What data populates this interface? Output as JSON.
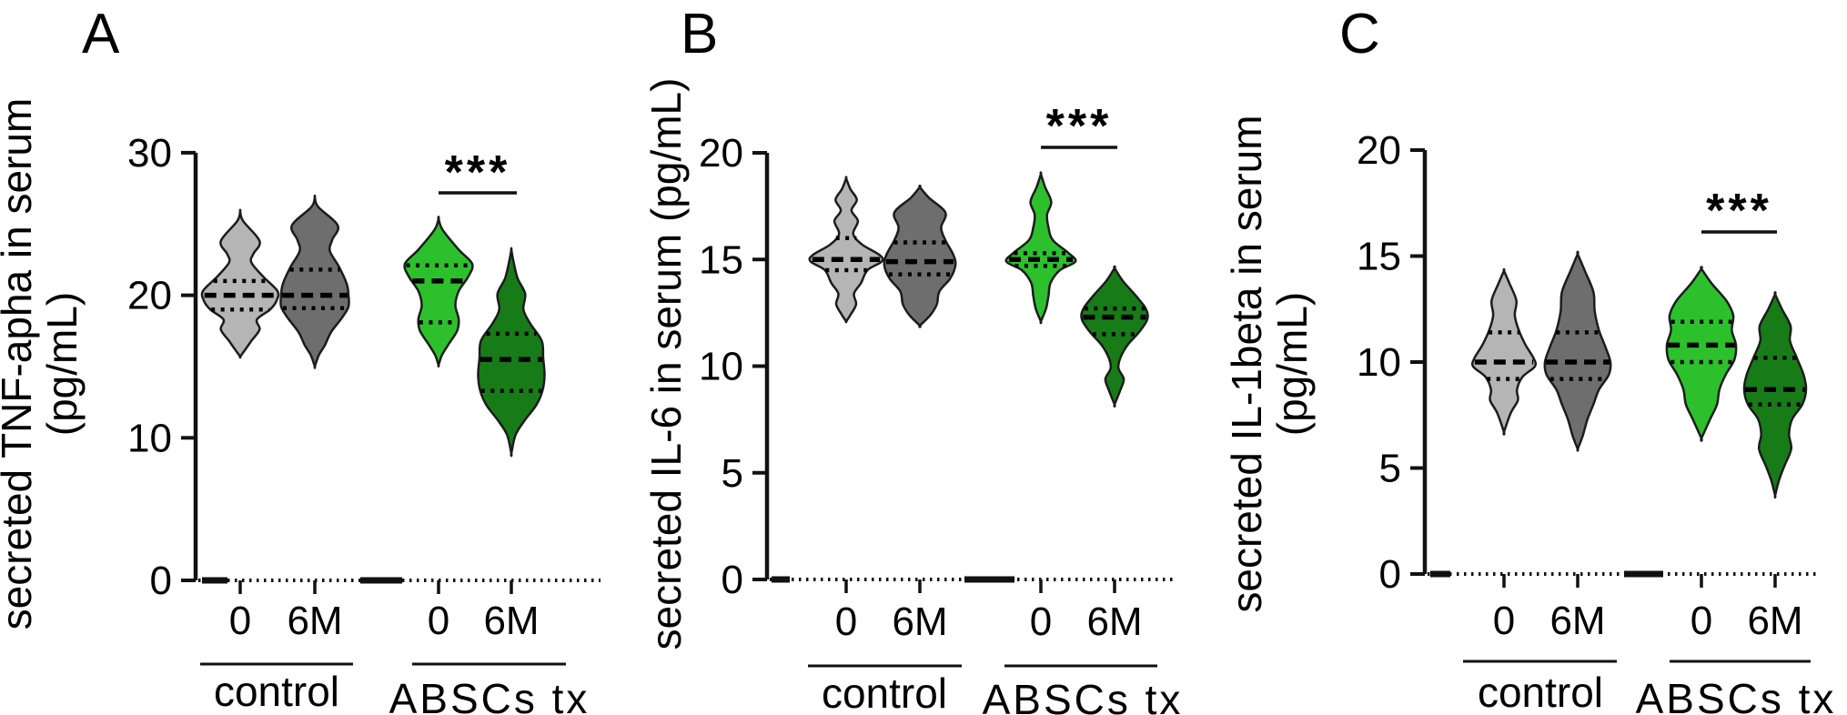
{
  "figure_title": "",
  "chart_data": [
    {
      "type": "violin",
      "panel_letter": "A",
      "ylabel": "secreted TNF-apha in serum (pg/mL)",
      "ylabel_lines": [
        "secreted TNF-apha in serum",
        "(pg/mL)"
      ],
      "ylim": [
        0,
        30
      ],
      "yticks": [
        0,
        10,
        20,
        30
      ],
      "x_tick_labels": [
        "0",
        "6M",
        "0",
        "6M"
      ],
      "group_labels": [
        "control",
        "ABSCs tx"
      ],
      "significance": {
        "label": "***",
        "comparison": "ABSCs tx 0 vs ABSCs tx 6M"
      },
      "violins": [
        {
          "group": "control",
          "timepoint": "0",
          "fill": "#b5b5b5",
          "median": 20.0,
          "q1": 19.0,
          "q3": 21.0,
          "min": 15.7,
          "max": 25.9,
          "profile": [
            [
              25.9,
              0
            ],
            [
              25.2,
              0.08
            ],
            [
              23.8,
              0.52
            ],
            [
              22.9,
              0.35
            ],
            [
              22.3,
              0.3
            ],
            [
              21.3,
              0.62
            ],
            [
              20.3,
              1.0
            ],
            [
              19.6,
              0.97
            ],
            [
              19.0,
              0.8
            ],
            [
              18.3,
              0.45
            ],
            [
              17.6,
              0.52
            ],
            [
              16.8,
              0.3
            ],
            [
              16.2,
              0.14
            ],
            [
              15.7,
              0
            ]
          ]
        },
        {
          "group": "control",
          "timepoint": "6M",
          "fill": "#6e6e6e",
          "median": 20.0,
          "q1": 19.1,
          "q3": 21.8,
          "min": 15.0,
          "max": 26.9,
          "profile": [
            [
              26.9,
              0
            ],
            [
              26.2,
              0.1
            ],
            [
              24.9,
              0.68
            ],
            [
              23.9,
              0.52
            ],
            [
              23.1,
              0.45
            ],
            [
              22.0,
              0.72
            ],
            [
              20.8,
              0.95
            ],
            [
              20.0,
              1.0
            ],
            [
              19.2,
              1.0
            ],
            [
              18.4,
              0.8
            ],
            [
              17.4,
              0.48
            ],
            [
              16.5,
              0.3
            ],
            [
              15.8,
              0.12
            ],
            [
              15.0,
              0
            ]
          ]
        },
        {
          "group": "ABSCs tx",
          "timepoint": "0",
          "fill": "#2cc12c",
          "median": 21.0,
          "q1": 18.1,
          "q3": 22.1,
          "min": 15.1,
          "max": 25.4,
          "profile": [
            [
              25.4,
              0
            ],
            [
              24.6,
              0.12
            ],
            [
              23.2,
              0.6
            ],
            [
              22.2,
              1.0
            ],
            [
              21.3,
              0.88
            ],
            [
              20.3,
              0.6
            ],
            [
              19.3,
              0.5
            ],
            [
              18.3,
              0.6
            ],
            [
              17.5,
              0.55
            ],
            [
              16.5,
              0.28
            ],
            [
              15.8,
              0.1
            ],
            [
              15.1,
              0
            ]
          ]
        },
        {
          "group": "ABSCs tx",
          "timepoint": "6M",
          "fill": "#177c17",
          "median": 15.5,
          "q1": 13.3,
          "q3": 17.3,
          "min": 8.9,
          "max": 23.2,
          "profile": [
            [
              23.2,
              0
            ],
            [
              22.4,
              0.06
            ],
            [
              21.2,
              0.18
            ],
            [
              20.1,
              0.4
            ],
            [
              19.0,
              0.35
            ],
            [
              18.0,
              0.55
            ],
            [
              16.8,
              0.88
            ],
            [
              15.6,
              0.92
            ],
            [
              14.4,
              0.96
            ],
            [
              13.3,
              0.9
            ],
            [
              12.3,
              0.72
            ],
            [
              11.2,
              0.38
            ],
            [
              10.2,
              0.12
            ],
            [
              8.9,
              0
            ]
          ]
        }
      ]
    },
    {
      "type": "violin",
      "panel_letter": "B",
      "ylabel": "secreted IL-6 in serum (pg/mL)",
      "ylabel_lines": [
        "secreted IL-6 in serum (pg/mL)"
      ],
      "ylim": [
        0,
        20
      ],
      "yticks": [
        0,
        5,
        10,
        15,
        20
      ],
      "x_tick_labels": [
        "0",
        "6M",
        "0",
        "6M"
      ],
      "group_labels": [
        "control",
        "ABSCs tx"
      ],
      "significance": {
        "label": "***",
        "comparison": "ABSCs tx 0 vs ABSCs tx 6M"
      },
      "violins": [
        {
          "group": "control",
          "timepoint": "0",
          "fill": "#b5b5b5",
          "median": 15.0,
          "q1": 14.5,
          "q3": 16.0,
          "min": 12.1,
          "max": 18.8,
          "profile": [
            [
              18.8,
              0
            ],
            [
              18.3,
              0.12
            ],
            [
              17.8,
              0.3
            ],
            [
              17.3,
              0.15
            ],
            [
              16.8,
              0.33
            ],
            [
              16.2,
              0.2
            ],
            [
              15.7,
              0.45
            ],
            [
              15.2,
              0.95
            ],
            [
              14.9,
              1.0
            ],
            [
              14.5,
              0.6
            ],
            [
              13.9,
              0.42
            ],
            [
              13.4,
              0.22
            ],
            [
              12.9,
              0.28
            ],
            [
              12.4,
              0.12
            ],
            [
              12.1,
              0
            ]
          ]
        },
        {
          "group": "control",
          "timepoint": "6M",
          "fill": "#6e6e6e",
          "median": 14.9,
          "q1": 14.3,
          "q3": 15.8,
          "min": 11.9,
          "max": 18.4,
          "profile": [
            [
              18.4,
              0
            ],
            [
              17.9,
              0.25
            ],
            [
              17.2,
              0.72
            ],
            [
              16.5,
              0.6
            ],
            [
              15.9,
              0.72
            ],
            [
              15.2,
              0.95
            ],
            [
              14.7,
              1.0
            ],
            [
              14.1,
              0.85
            ],
            [
              13.5,
              0.55
            ],
            [
              12.9,
              0.48
            ],
            [
              12.4,
              0.3
            ],
            [
              11.9,
              0
            ]
          ]
        },
        {
          "group": "ABSCs tx",
          "timepoint": "0",
          "fill": "#2cc12c",
          "median": 15.0,
          "q1": 14.7,
          "q3": 15.3,
          "min": 12.1,
          "max": 19.0,
          "profile": [
            [
              19.0,
              0
            ],
            [
              18.4,
              0.12
            ],
            [
              17.7,
              0.3
            ],
            [
              17.1,
              0.18
            ],
            [
              16.5,
              0.22
            ],
            [
              15.9,
              0.35
            ],
            [
              15.3,
              0.8
            ],
            [
              14.9,
              1.0
            ],
            [
              14.5,
              0.55
            ],
            [
              13.9,
              0.28
            ],
            [
              13.3,
              0.22
            ],
            [
              12.7,
              0.15
            ],
            [
              12.1,
              0
            ]
          ]
        },
        {
          "group": "ABSCs tx",
          "timepoint": "6M",
          "fill": "#177c17",
          "median": 12.3,
          "q1": 11.5,
          "q3": 12.7,
          "min": 8.2,
          "max": 14.6,
          "profile": [
            [
              14.6,
              0
            ],
            [
              14.0,
              0.25
            ],
            [
              13.3,
              0.65
            ],
            [
              12.7,
              0.95
            ],
            [
              12.2,
              1.0
            ],
            [
              11.6,
              0.75
            ],
            [
              11.0,
              0.4
            ],
            [
              10.4,
              0.18
            ],
            [
              9.9,
              0.12
            ],
            [
              9.4,
              0.28
            ],
            [
              8.9,
              0.18
            ],
            [
              8.2,
              0
            ]
          ]
        }
      ]
    },
    {
      "type": "violin",
      "panel_letter": "C",
      "ylabel": "secreted IL-1beta in serum (pg/mL)",
      "ylabel_lines": [
        "secreted IL-1beta in serum",
        "(pg/mL)"
      ],
      "ylim": [
        0,
        20
      ],
      "yticks": [
        0,
        5,
        10,
        15,
        20
      ],
      "x_tick_labels": [
        "0",
        "6M",
        "0",
        "6M"
      ],
      "group_labels": [
        "control",
        "ABSCs tx"
      ],
      "significance": {
        "label": "***",
        "comparison": "ABSCs tx 0 vs ABSCs tx 6M"
      },
      "violins": [
        {
          "group": "control",
          "timepoint": "0",
          "fill": "#b5b5b5",
          "median": 10.0,
          "q1": 9.2,
          "q3": 11.4,
          "min": 6.7,
          "max": 14.3,
          "profile": [
            [
              14.3,
              0
            ],
            [
              13.7,
              0.18
            ],
            [
              12.9,
              0.4
            ],
            [
              12.2,
              0.35
            ],
            [
              11.5,
              0.48
            ],
            [
              10.8,
              0.7
            ],
            [
              10.2,
              0.95
            ],
            [
              9.8,
              1.0
            ],
            [
              9.3,
              0.6
            ],
            [
              8.7,
              0.42
            ],
            [
              8.2,
              0.45
            ],
            [
              7.6,
              0.22
            ],
            [
              6.7,
              0
            ]
          ]
        },
        {
          "group": "control",
          "timepoint": "6M",
          "fill": "#6e6e6e",
          "median": 10.0,
          "q1": 9.2,
          "q3": 11.4,
          "min": 5.9,
          "max": 15.1,
          "profile": [
            [
              15.1,
              0
            ],
            [
              14.3,
              0.22
            ],
            [
              13.3,
              0.48
            ],
            [
              12.4,
              0.52
            ],
            [
              11.5,
              0.65
            ],
            [
              10.7,
              0.85
            ],
            [
              10.0,
              1.0
            ],
            [
              9.4,
              0.95
            ],
            [
              8.7,
              0.65
            ],
            [
              8.0,
              0.48
            ],
            [
              7.3,
              0.3
            ],
            [
              6.5,
              0.15
            ],
            [
              5.9,
              0
            ]
          ]
        },
        {
          "group": "ABSCs tx",
          "timepoint": "0",
          "fill": "#2cc12c",
          "median": 10.8,
          "q1": 10.0,
          "q3": 11.9,
          "min": 6.4,
          "max": 14.4,
          "profile": [
            [
              14.4,
              0
            ],
            [
              13.7,
              0.3
            ],
            [
              12.9,
              0.72
            ],
            [
              12.2,
              0.92
            ],
            [
              11.5,
              0.88
            ],
            [
              10.8,
              1.0
            ],
            [
              10.1,
              0.95
            ],
            [
              9.4,
              0.7
            ],
            [
              8.7,
              0.52
            ],
            [
              8.0,
              0.45
            ],
            [
              7.3,
              0.25
            ],
            [
              6.4,
              0
            ]
          ]
        },
        {
          "group": "ABSCs tx",
          "timepoint": "6M",
          "fill": "#177c17",
          "median": 8.7,
          "q1": 8.0,
          "q3": 10.2,
          "min": 3.7,
          "max": 13.2,
          "profile": [
            [
              13.2,
              0
            ],
            [
              12.5,
              0.22
            ],
            [
              11.7,
              0.5
            ],
            [
              11.0,
              0.48
            ],
            [
              10.2,
              0.7
            ],
            [
              9.4,
              0.92
            ],
            [
              8.7,
              1.0
            ],
            [
              8.0,
              0.88
            ],
            [
              7.3,
              0.55
            ],
            [
              6.6,
              0.45
            ],
            [
              5.9,
              0.52
            ],
            [
              5.1,
              0.3
            ],
            [
              4.4,
              0.12
            ],
            [
              3.7,
              0
            ]
          ]
        }
      ]
    }
  ],
  "colors": {
    "control_0": "#b5b5b5",
    "control_6M": "#6e6e6e",
    "abscs_0": "#2cc12c",
    "abscs_6M": "#177c17",
    "ink": "#111111"
  }
}
